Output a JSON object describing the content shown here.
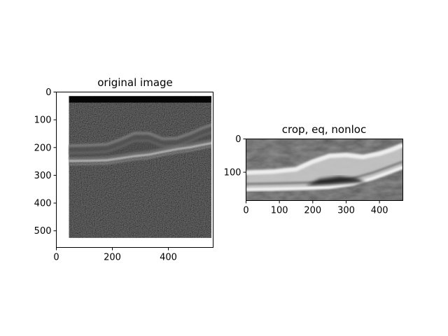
{
  "chart_data": [
    {
      "type": "image",
      "title": "original image",
      "xlim": [
        0,
        560
      ],
      "ylim": [
        560,
        0
      ],
      "xticks": [
        0,
        200,
        400
      ],
      "yticks": [
        0,
        100,
        200,
        300,
        400,
        500
      ],
      "grid": false,
      "legend": "none",
      "colormap": "gray",
      "image_extent": {
        "x": [
          45,
          560
        ],
        "y": [
          15,
          525
        ]
      },
      "dark_band": {
        "y": [
          15,
          38
        ]
      },
      "layers": [
        {
          "name": "upper-band",
          "points": [
            [
              45,
              195
            ],
            [
              120,
              193
            ],
            [
              180,
              190
            ],
            [
              230,
              172
            ],
            [
              280,
              150
            ],
            [
              330,
              150
            ],
            [
              380,
              170
            ],
            [
              430,
              168
            ],
            [
              480,
              150
            ],
            [
              520,
              132
            ],
            [
              560,
              118
            ]
          ]
        },
        {
          "name": "rpe-band",
          "points": [
            [
              45,
              248
            ],
            [
              120,
              247
            ],
            [
              180,
              245
            ],
            [
              230,
              238
            ],
            [
              280,
              230
            ],
            [
              330,
              225
            ],
            [
              380,
              215
            ],
            [
              430,
              205
            ],
            [
              480,
              198
            ],
            [
              520,
              190
            ],
            [
              560,
              182
            ]
          ]
        }
      ]
    },
    {
      "type": "image",
      "title": "crop, eq, nonloc",
      "xlim": [
        0,
        470
      ],
      "ylim": [
        185,
        0
      ],
      "xticks": [
        0,
        100,
        200,
        300,
        400
      ],
      "yticks": [
        0,
        100
      ],
      "grid": false,
      "legend": "none",
      "colormap": "gray",
      "layers": [
        {
          "name": "bright-band",
          "points": [
            [
              0,
              95
            ],
            [
              80,
              92
            ],
            [
              150,
              85
            ],
            [
              200,
              62
            ],
            [
              250,
              45
            ],
            [
              300,
              42
            ],
            [
              350,
              48
            ],
            [
              400,
              38
            ],
            [
              440,
              25
            ],
            [
              470,
              12
            ]
          ]
        },
        {
          "name": "dark-pocket",
          "points": [
            [
              180,
              140
            ],
            [
              220,
              120
            ],
            [
              280,
              112
            ],
            [
              330,
              118
            ],
            [
              360,
              130
            ]
          ]
        },
        {
          "name": "lower-band",
          "points": [
            [
              0,
              152
            ],
            [
              100,
              150
            ],
            [
              180,
              148
            ],
            [
              250,
              145
            ],
            [
              320,
              135
            ],
            [
              380,
              118
            ],
            [
              430,
              100
            ],
            [
              470,
              85
            ]
          ]
        }
      ]
    }
  ]
}
